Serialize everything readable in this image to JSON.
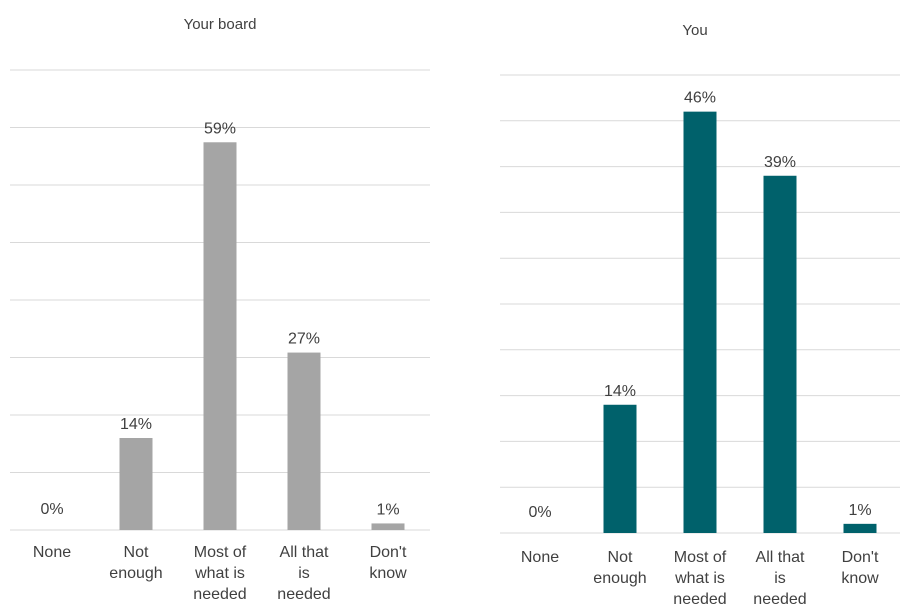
{
  "chart_data": [
    {
      "type": "bar",
      "title": "Your board",
      "categories": [
        "None",
        "Not enough",
        "Most of what is needed",
        "All that is needed",
        "Don't know"
      ],
      "category_lines": [
        [
          "None"
        ],
        [
          "Not",
          "enough"
        ],
        [
          "Most of",
          "what is",
          "needed"
        ],
        [
          "All that",
          "is",
          "needed"
        ],
        [
          "Don't",
          "know"
        ]
      ],
      "values": [
        0,
        14,
        59,
        27,
        1
      ],
      "data_labels": [
        "0%",
        "14%",
        "59%",
        "27%",
        "1%"
      ],
      "ylim": [
        0,
        70
      ],
      "grid": true,
      "bar_color": "#a5a5a5"
    },
    {
      "type": "bar",
      "title": "You",
      "categories": [
        "None",
        "Not enough",
        "Most of what is needed",
        "All that is needed",
        "Don't know"
      ],
      "category_lines": [
        [
          "None"
        ],
        [
          "Not",
          "enough"
        ],
        [
          "Most of",
          "what is",
          "needed"
        ],
        [
          "All that",
          "is",
          "needed"
        ],
        [
          "Don't",
          "know"
        ]
      ],
      "values": [
        0,
        14,
        46,
        39,
        1
      ],
      "data_labels": [
        "0%",
        "14%",
        "46%",
        "39%",
        "1%"
      ],
      "ylim": [
        0,
        50
      ],
      "grid": true,
      "bar_color": "#00616b"
    }
  ]
}
